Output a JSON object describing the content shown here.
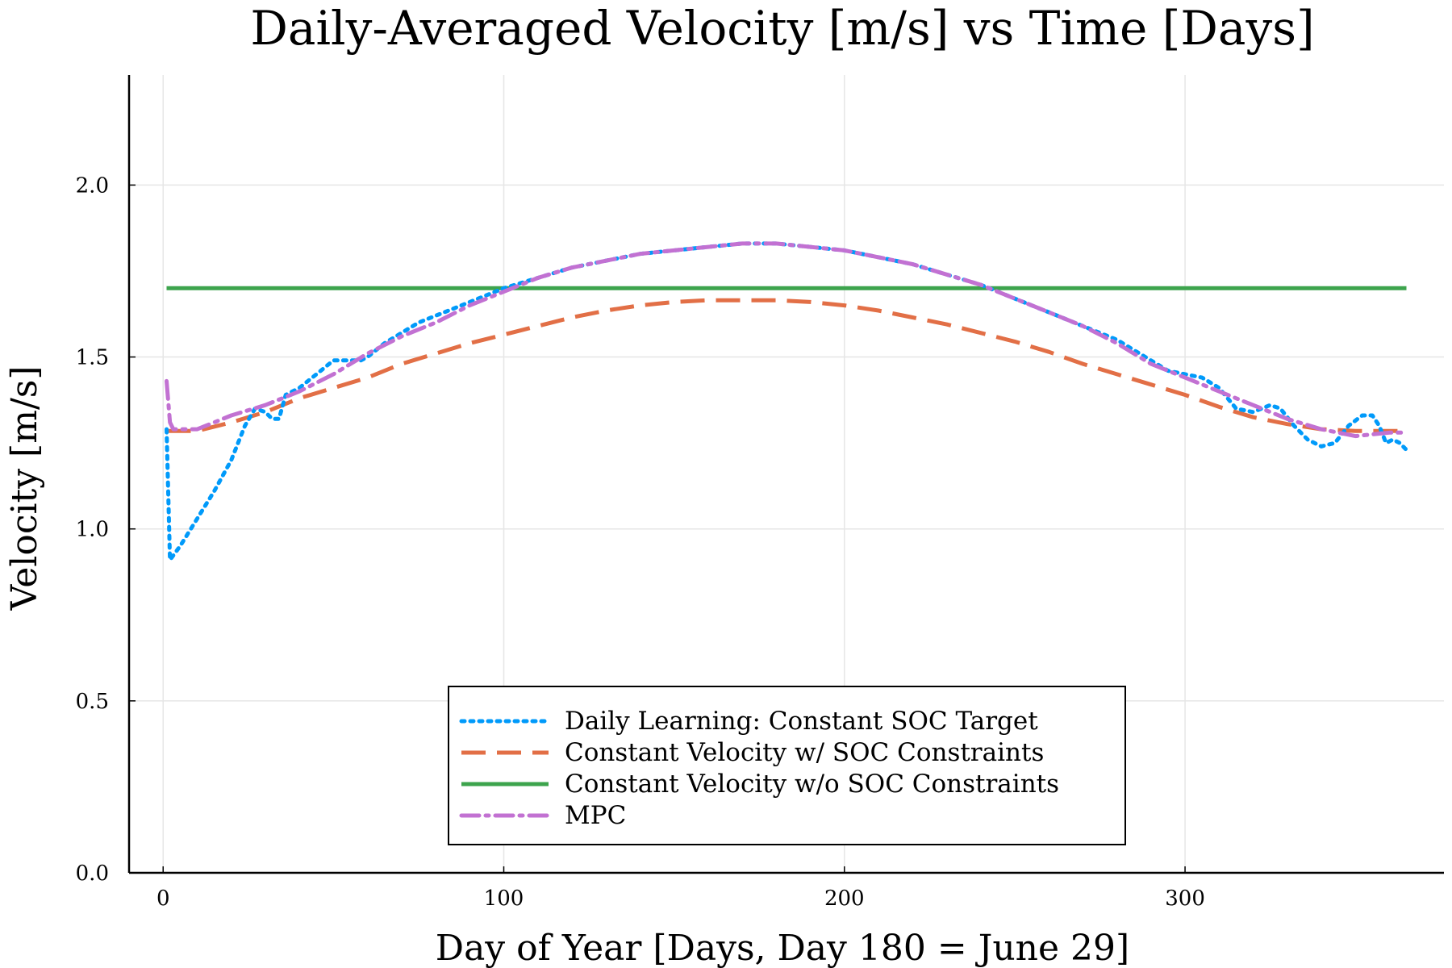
{
  "chart_data": {
    "type": "line",
    "title": "Daily-Averaged Velocity [m/s] vs Time [Days]",
    "xlabel": "Day of Year [Days, Day 180 = June 29]",
    "ylabel": "Velocity [m/s]",
    "xlim": [
      -10,
      376
    ],
    "ylim": [
      0,
      2.32
    ],
    "xticks": [
      0,
      100,
      200,
      300
    ],
    "xtick_labels": [
      "0",
      "100",
      "200",
      "300"
    ],
    "yticks": [
      0.0,
      0.5,
      1.0,
      1.5,
      2.0
    ],
    "ytick_labels": [
      "0.0",
      "0.5",
      "1.0",
      "1.5",
      "2.0"
    ],
    "grid": true,
    "legend_position": "bottom-center",
    "series": [
      {
        "name": "Daily Learning: Constant SOC Target",
        "color": "#009AFA",
        "style": "dotted",
        "points": [
          [
            1,
            1.29
          ],
          [
            2,
            0.91
          ],
          [
            5,
            0.95
          ],
          [
            10,
            1.03
          ],
          [
            15,
            1.11
          ],
          [
            20,
            1.2
          ],
          [
            24,
            1.3
          ],
          [
            27,
            1.35
          ],
          [
            30,
            1.34
          ],
          [
            32,
            1.32
          ],
          [
            34,
            1.32
          ],
          [
            36,
            1.39
          ],
          [
            40,
            1.41
          ],
          [
            45,
            1.45
          ],
          [
            50,
            1.49
          ],
          [
            55,
            1.49
          ],
          [
            58,
            1.49
          ],
          [
            60,
            1.5
          ],
          [
            65,
            1.54
          ],
          [
            70,
            1.57
          ],
          [
            75,
            1.6
          ],
          [
            80,
            1.62
          ],
          [
            90,
            1.66
          ],
          [
            100,
            1.7
          ],
          [
            110,
            1.73
          ],
          [
            120,
            1.76
          ],
          [
            130,
            1.78
          ],
          [
            140,
            1.8
          ],
          [
            150,
            1.81
          ],
          [
            160,
            1.82
          ],
          [
            170,
            1.83
          ],
          [
            175,
            1.83
          ],
          [
            180,
            1.83
          ],
          [
            190,
            1.82
          ],
          [
            200,
            1.81
          ],
          [
            210,
            1.79
          ],
          [
            220,
            1.77
          ],
          [
            230,
            1.74
          ],
          [
            240,
            1.71
          ],
          [
            250,
            1.67
          ],
          [
            260,
            1.63
          ],
          [
            270,
            1.59
          ],
          [
            280,
            1.55
          ],
          [
            290,
            1.49
          ],
          [
            295,
            1.46
          ],
          [
            300,
            1.45
          ],
          [
            305,
            1.44
          ],
          [
            310,
            1.41
          ],
          [
            315,
            1.35
          ],
          [
            320,
            1.34
          ],
          [
            325,
            1.36
          ],
          [
            328,
            1.35
          ],
          [
            332,
            1.3
          ],
          [
            336,
            1.26
          ],
          [
            340,
            1.24
          ],
          [
            344,
            1.25
          ],
          [
            348,
            1.3
          ],
          [
            352,
            1.33
          ],
          [
            355,
            1.33
          ],
          [
            357,
            1.3
          ],
          [
            359,
            1.25
          ],
          [
            361,
            1.26
          ],
          [
            363,
            1.25
          ],
          [
            365,
            1.23
          ]
        ]
      },
      {
        "name": "Constant Velocity w/ SOC Constraints",
        "color": "#E26F46",
        "style": "dashed",
        "points": [
          [
            1,
            1.285
          ],
          [
            10,
            1.285
          ],
          [
            20,
            1.31
          ],
          [
            30,
            1.34
          ],
          [
            40,
            1.38
          ],
          [
            50,
            1.41
          ],
          [
            60,
            1.44
          ],
          [
            70,
            1.48
          ],
          [
            80,
            1.51
          ],
          [
            90,
            1.54
          ],
          [
            100,
            1.565
          ],
          [
            110,
            1.59
          ],
          [
            120,
            1.615
          ],
          [
            130,
            1.635
          ],
          [
            140,
            1.65
          ],
          [
            150,
            1.66
          ],
          [
            160,
            1.665
          ],
          [
            170,
            1.665
          ],
          [
            180,
            1.665
          ],
          [
            190,
            1.66
          ],
          [
            200,
            1.65
          ],
          [
            210,
            1.635
          ],
          [
            220,
            1.615
          ],
          [
            230,
            1.595
          ],
          [
            240,
            1.57
          ],
          [
            250,
            1.545
          ],
          [
            260,
            1.515
          ],
          [
            270,
            1.48
          ],
          [
            280,
            1.45
          ],
          [
            290,
            1.42
          ],
          [
            300,
            1.39
          ],
          [
            310,
            1.355
          ],
          [
            320,
            1.325
          ],
          [
            330,
            1.305
          ],
          [
            340,
            1.29
          ],
          [
            350,
            1.285
          ],
          [
            360,
            1.285
          ],
          [
            364,
            1.285
          ]
        ]
      },
      {
        "name": "Constant Velocity w/o SOC Constraints",
        "color": "#3DA44D",
        "style": "solid",
        "points": [
          [
            1,
            1.7
          ],
          [
            365,
            1.7
          ]
        ]
      },
      {
        "name": "MPC",
        "color": "#C271D2",
        "style": "dashdot",
        "points": [
          [
            1,
            1.43
          ],
          [
            2,
            1.31
          ],
          [
            3,
            1.29
          ],
          [
            10,
            1.29
          ],
          [
            20,
            1.33
          ],
          [
            30,
            1.36
          ],
          [
            40,
            1.4
          ],
          [
            50,
            1.45
          ],
          [
            60,
            1.51
          ],
          [
            70,
            1.56
          ],
          [
            80,
            1.6
          ],
          [
            90,
            1.65
          ],
          [
            100,
            1.69
          ],
          [
            110,
            1.73
          ],
          [
            120,
            1.76
          ],
          [
            130,
            1.78
          ],
          [
            140,
            1.8
          ],
          [
            150,
            1.81
          ],
          [
            160,
            1.82
          ],
          [
            170,
            1.83
          ],
          [
            180,
            1.83
          ],
          [
            190,
            1.82
          ],
          [
            200,
            1.81
          ],
          [
            210,
            1.79
          ],
          [
            220,
            1.77
          ],
          [
            230,
            1.74
          ],
          [
            240,
            1.71
          ],
          [
            250,
            1.67
          ],
          [
            260,
            1.63
          ],
          [
            270,
            1.59
          ],
          [
            280,
            1.54
          ],
          [
            290,
            1.48
          ],
          [
            300,
            1.44
          ],
          [
            310,
            1.4
          ],
          [
            320,
            1.36
          ],
          [
            330,
            1.32
          ],
          [
            340,
            1.29
          ],
          [
            350,
            1.27
          ],
          [
            360,
            1.28
          ],
          [
            365,
            1.28
          ]
        ]
      }
    ]
  }
}
